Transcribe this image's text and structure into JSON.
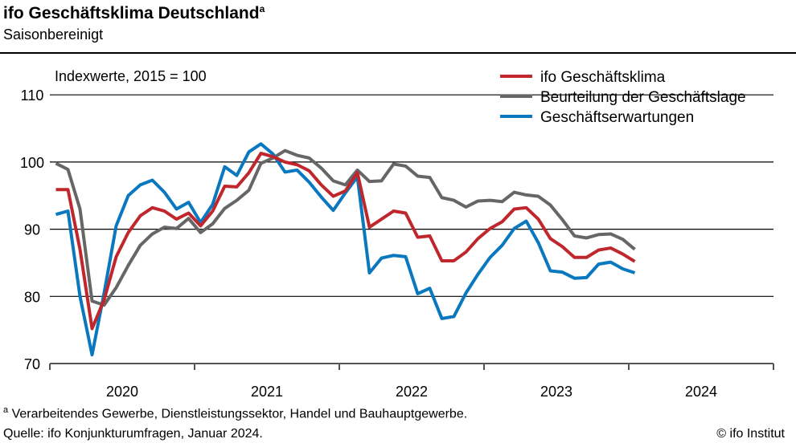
{
  "header": {
    "title": "ifo Geschäftsklima Deutschland",
    "title_footnote_mark": "a",
    "subtitle": "Saisonbereinigt"
  },
  "footer": {
    "footnote_mark": "a",
    "footnote": "Verarbeitendes  Gewerbe,  Dienstleistungssektor,  Handel und Bauhauptgewerbe.",
    "source": "Quelle:  ifo Konjunkturumfragen,  Januar 2024.",
    "copyright": "© ifo Institut"
  },
  "chart_data": {
    "type": "line",
    "title": "ifo Geschäftsklima Deutschland",
    "subtitle": "Saisonbereinigt",
    "ylabel": "Indexwerte, 2015 = 100",
    "xlabel": "",
    "ylim": [
      70,
      112
    ],
    "yticks": [
      70,
      80,
      90,
      100,
      110
    ],
    "x_start": "2020-01",
    "x_end": "2024-01",
    "xtick_labels": [
      "2020",
      "2021",
      "2022",
      "2023",
      "2024"
    ],
    "grid": "horizontal",
    "legend_position": "top-right",
    "series": [
      {
        "name": "ifo Geschäftsklima",
        "color": "#c0272d",
        "values": [
          95.9,
          95.9,
          87.0,
          75.2,
          79.5,
          85.9,
          89.5,
          92.0,
          93.2,
          92.7,
          91.5,
          92.4,
          90.5,
          92.7,
          96.4,
          96.3,
          98.4,
          101.3,
          100.8,
          100.0,
          99.6,
          98.7,
          96.6,
          94.9,
          95.7,
          98.4,
          90.3,
          91.5,
          92.7,
          92.4,
          88.8,
          89.0,
          85.3,
          85.3,
          86.6,
          88.6,
          90.1,
          91.1,
          93.0,
          93.2,
          91.5,
          88.6,
          87.4,
          85.8,
          85.8,
          86.9,
          87.2,
          86.3,
          85.2
        ]
      },
      {
        "name": "Beurteilung der Geschäftslage",
        "color": "#666666",
        "values": [
          99.8,
          98.9,
          93.0,
          79.3,
          78.7,
          81.3,
          84.6,
          87.6,
          89.3,
          90.3,
          90.1,
          91.6,
          89.5,
          90.8,
          93.1,
          94.3,
          95.8,
          99.8,
          100.6,
          101.7,
          101.0,
          100.6,
          99.1,
          97.2,
          96.6,
          98.8,
          97.1,
          97.2,
          99.7,
          99.4,
          97.9,
          97.7,
          94.7,
          94.3,
          93.3,
          94.2,
          94.3,
          94.1,
          95.5,
          95.1,
          94.9,
          93.6,
          91.4,
          89.0,
          88.7,
          89.2,
          89.3,
          88.5,
          87.0
        ]
      },
      {
        "name": "Geschäftserwartungen",
        "color": "#0a78bf",
        "values": [
          92.2,
          92.7,
          80.0,
          71.3,
          80.5,
          90.5,
          95.0,
          96.6,
          97.3,
          95.5,
          93.0,
          94.0,
          91.0,
          93.7,
          99.3,
          98.0,
          101.5,
          102.7,
          101.2,
          98.5,
          98.8,
          97.0,
          94.8,
          92.8,
          95.4,
          97.8,
          83.5,
          85.7,
          86.1,
          85.9,
          80.4,
          81.2,
          76.7,
          77.0,
          80.5,
          83.3,
          85.8,
          87.6,
          90.1,
          91.2,
          88.0,
          83.8,
          83.6,
          82.7,
          82.8,
          84.8,
          85.1,
          84.1,
          83.5
        ]
      }
    ]
  }
}
